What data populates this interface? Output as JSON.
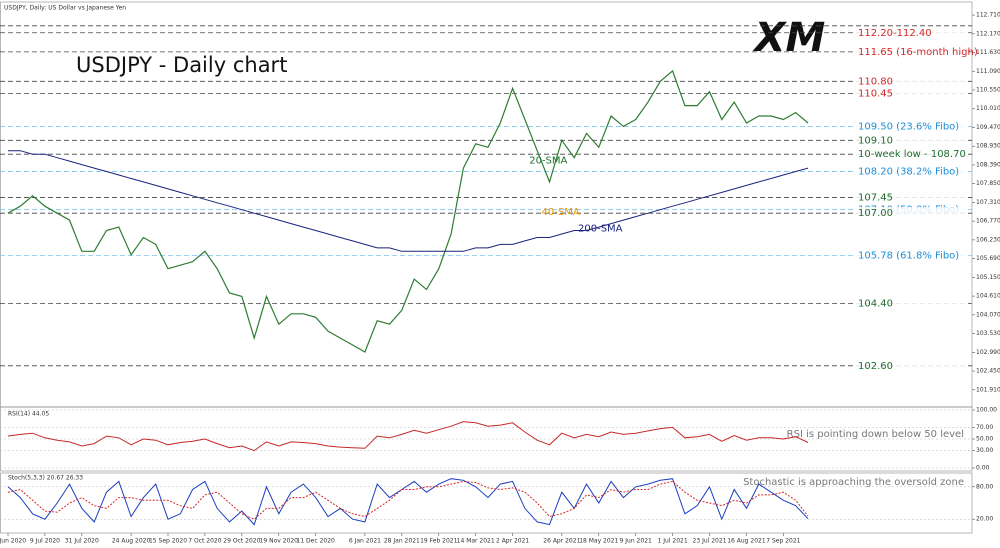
{
  "chart_data": [
    {
      "type": "line",
      "title": "USDJPY - Daily chart",
      "subtitle": "USDJPY, Daily: US Dollar vs Japanese Yen",
      "logo": "XM",
      "ylim": [
        101.5,
        113.0
      ],
      "yticks": [
        {
          "value": 101.91,
          "label": "101.910"
        },
        {
          "value": 102.45,
          "label": "102.450"
        },
        {
          "value": 102.99,
          "label": "102.990"
        },
        {
          "value": 103.53,
          "label": "103.530"
        },
        {
          "value": 104.07,
          "label": "104.070"
        },
        {
          "value": 104.61,
          "label": "104.610"
        },
        {
          "value": 105.15,
          "label": "105.150"
        },
        {
          "value": 105.69,
          "label": "105.690"
        },
        {
          "value": 106.23,
          "label": "106.230"
        },
        {
          "value": 106.77,
          "label": "106.770"
        },
        {
          "value": 107.31,
          "label": "107.310"
        },
        {
          "value": 107.85,
          "label": "107.850"
        },
        {
          "value": 108.39,
          "label": "108.390"
        },
        {
          "value": 108.93,
          "label": "108.930"
        },
        {
          "value": 109.47,
          "label": "109.470"
        },
        {
          "value": 110.01,
          "label": "110.010"
        },
        {
          "value": 110.55,
          "label": "110.550"
        },
        {
          "value": 111.09,
          "label": "111.090"
        },
        {
          "value": 111.63,
          "label": "111.630"
        },
        {
          "value": 112.17,
          "label": "112.170"
        },
        {
          "value": 112.71,
          "label": "112.710"
        }
      ],
      "series": [
        {
          "name": "USDJPY",
          "color": "#2e7d32",
          "values": [
            107.0,
            107.2,
            107.5,
            107.2,
            107.0,
            106.8,
            105.9,
            105.9,
            106.5,
            106.6,
            105.8,
            106.3,
            106.1,
            105.4,
            105.5,
            105.6,
            105.9,
            105.4,
            104.7,
            104.6,
            103.4,
            104.6,
            103.8,
            104.1,
            104.1,
            104.0,
            103.6,
            103.4,
            103.2,
            103.0,
            103.9,
            103.8,
            104.2,
            105.1,
            104.8,
            105.4,
            106.4,
            108.3,
            109.0,
            108.9,
            109.6,
            110.6,
            109.7,
            108.8,
            107.9,
            109.1,
            108.6,
            109.3,
            108.9,
            109.8,
            109.5,
            109.7,
            110.2,
            110.8,
            111.1,
            110.1,
            110.1,
            110.5,
            109.7,
            110.2,
            109.6,
            109.8,
            109.8,
            109.7,
            109.9,
            109.6
          ]
        },
        {
          "name": "200-SMA",
          "color": "#1a237e",
          "values": [
            108.8,
            108.8,
            108.7,
            108.7,
            108.6,
            108.5,
            108.4,
            108.3,
            108.2,
            108.1,
            108.0,
            107.9,
            107.8,
            107.7,
            107.6,
            107.5,
            107.4,
            107.3,
            107.2,
            107.1,
            107.0,
            106.9,
            106.8,
            106.7,
            106.6,
            106.5,
            106.4,
            106.3,
            106.2,
            106.1,
            106.0,
            106.0,
            105.9,
            105.9,
            105.9,
            105.9,
            105.9,
            105.9,
            106.0,
            106.0,
            106.1,
            106.1,
            106.2,
            106.3,
            106.3,
            106.4,
            106.5,
            106.5,
            106.6,
            106.7,
            106.8,
            106.9,
            107.0,
            107.1,
            107.2,
            107.3,
            107.4,
            107.5,
            107.6,
            107.7,
            107.8,
            107.9,
            108.0,
            108.1,
            108.2,
            108.3
          ]
        }
      ],
      "line_labels": [
        "20-SMA",
        "40-SMA"
      ],
      "levels": [
        {
          "values": [
            112.2,
            112.4
          ],
          "label": "112.20-112.40",
          "color": "#d62728"
        },
        {
          "value": 111.65,
          "label": "111.65 (16-month high)",
          "color": "#d62728"
        },
        {
          "value": 110.8,
          "label": "110.80",
          "color": "#d62728"
        },
        {
          "value": 110.45,
          "label": "110.45",
          "color": "#d62728"
        },
        {
          "value": 109.5,
          "label": "109.50 (23.6% Fibo)",
          "color": "#1f8fd6"
        },
        {
          "value": 109.1,
          "label": "109.10",
          "color": "#1f6e2e"
        },
        {
          "value": 108.7,
          "label": "10-week low - 108.70",
          "color": "#1f6e2e"
        },
        {
          "value": 108.2,
          "label": "108.20 (38.2% Fibo)",
          "color": "#1f8fd6"
        },
        {
          "value": 107.45,
          "label": "107.45",
          "color": "#1f6e2e"
        },
        {
          "value": 107.1,
          "label": "107.10 (50.0% Fibo)",
          "color": "#1f8fd6"
        },
        {
          "value": 107.0,
          "label": "107.00",
          "color": "#1f6e2e"
        },
        {
          "value": 105.78,
          "label": "105.78 (61.8% Fibo)",
          "color": "#1f8fd6"
        },
        {
          "value": 104.4,
          "label": "104.40",
          "color": "#1f6e2e"
        },
        {
          "value": 102.6,
          "label": "102.60",
          "color": "#1f6e2e"
        }
      ]
    },
    {
      "type": "line",
      "title": "RSI(14) 44.05",
      "annotation": "RSI is pointing down below 50 level",
      "ylim": [
        0,
        100
      ],
      "yticks": [
        {
          "value": 0,
          "label": "0.00"
        },
        {
          "value": 30,
          "label": "30.00"
        },
        {
          "value": 50,
          "label": "50.00"
        },
        {
          "value": 70,
          "label": "70.00"
        },
        {
          "value": 100,
          "label": "100.00"
        }
      ],
      "series": [
        {
          "name": "RSI(14)",
          "color": "#c62828",
          "values": [
            55,
            58,
            60,
            52,
            48,
            45,
            38,
            42,
            55,
            52,
            40,
            50,
            48,
            40,
            44,
            46,
            50,
            42,
            35,
            38,
            30,
            45,
            38,
            45,
            44,
            42,
            38,
            36,
            35,
            34,
            55,
            52,
            58,
            65,
            60,
            66,
            72,
            80,
            78,
            72,
            74,
            78,
            62,
            48,
            40,
            60,
            52,
            58,
            54,
            62,
            58,
            60,
            64,
            68,
            70,
            52,
            54,
            58,
            46,
            56,
            48,
            52,
            52,
            50,
            54,
            44
          ]
        }
      ]
    },
    {
      "type": "line",
      "title": "Stoch(5,3,3) 20.67 26.33",
      "annotation": "Stochastic is approaching the oversold zone",
      "ylim": [
        0,
        100
      ],
      "yticks": [
        {
          "value": 20,
          "label": "20.00"
        },
        {
          "value": 80,
          "label": "80.00"
        }
      ],
      "categories": [
        "17 Jun 2020",
        null,
        null,
        "9 Jul 2020",
        null,
        null,
        "31 Jul 2020",
        null,
        null,
        null,
        "24 Aug 2020",
        null,
        null,
        "15 Sep 2020",
        null,
        null,
        "7 Oct 2020",
        null,
        null,
        "29 Oct 2020",
        null,
        null,
        "19 Nov 2020",
        null,
        null,
        "11 Dec 2020",
        null,
        null,
        null,
        "6 Jan 2021",
        null,
        null,
        "28 Jan 2021",
        null,
        null,
        "19 Feb 2021",
        null,
        null,
        "14 Mar 2021",
        null,
        null,
        "2 Apr 2021",
        null,
        null,
        null,
        "26 Apr 2021",
        null,
        null,
        "18 May 2021",
        null,
        null,
        "9 Jun 2021",
        null,
        null,
        "1 Jul 2021",
        null,
        null,
        "23 Jul 2021",
        null,
        null,
        "16 Aug 2021",
        null,
        null,
        "7 Sep 2021",
        null,
        null
      ],
      "series": [
        {
          "name": "%K",
          "color": "#1a3fbf",
          "values": [
            80,
            60,
            30,
            20,
            50,
            85,
            40,
            15,
            70,
            90,
            25,
            60,
            85,
            20,
            30,
            75,
            90,
            40,
            15,
            35,
            10,
            80,
            30,
            70,
            85,
            60,
            25,
            40,
            20,
            15,
            85,
            60,
            75,
            90,
            70,
            85,
            95,
            92,
            80,
            60,
            85,
            90,
            40,
            15,
            10,
            70,
            40,
            85,
            50,
            90,
            60,
            80,
            85,
            92,
            95,
            30,
            45,
            80,
            20,
            75,
            40,
            85,
            70,
            55,
            45,
            21
          ]
        },
        {
          "name": "%D",
          "color": "#d62728",
          "values": [
            70,
            75,
            55,
            35,
            33,
            50,
            60,
            45,
            40,
            60,
            60,
            55,
            55,
            55,
            45,
            40,
            65,
            70,
            50,
            30,
            20,
            40,
            40,
            60,
            60,
            70,
            55,
            40,
            30,
            25,
            40,
            55,
            75,
            75,
            80,
            80,
            85,
            90,
            88,
            78,
            75,
            78,
            70,
            50,
            25,
            30,
            40,
            65,
            60,
            75,
            70,
            75,
            75,
            85,
            90,
            70,
            55,
            50,
            45,
            55,
            50,
            65,
            65,
            70,
            55,
            26
          ]
        }
      ]
    }
  ]
}
